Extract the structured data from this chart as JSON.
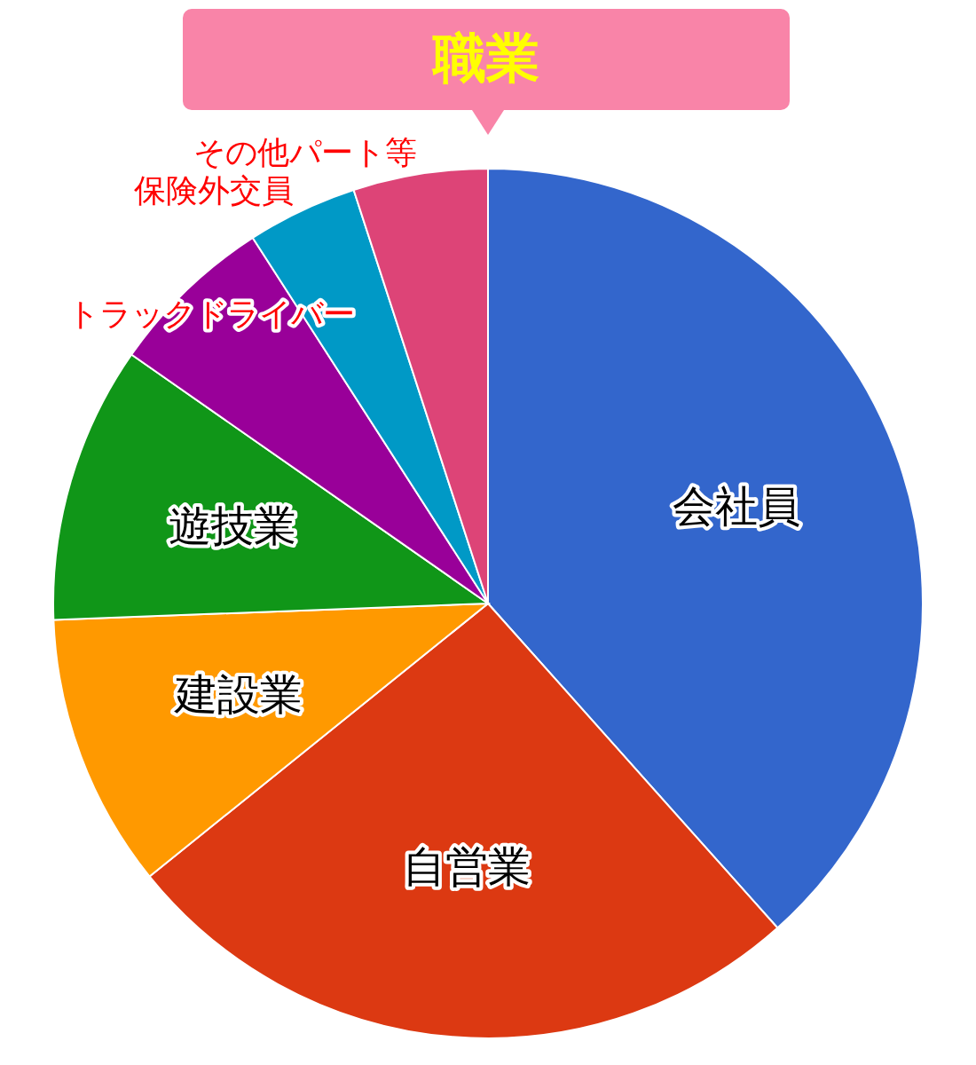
{
  "chart_data": {
    "type": "pie",
    "title": "職業",
    "categories": [
      "会社員",
      "自営業",
      "建設業",
      "遊技業",
      "トラックドライバー",
      "保険外交員",
      "その他パート等"
    ],
    "values": [
      38.4,
      25.8,
      10.2,
      10.3,
      6.2,
      4.1,
      5.0
    ],
    "colors": [
      "#3366cc",
      "#dc3912",
      "#ff9900",
      "#109618",
      "#990099",
      "#0099c6",
      "#dd4477"
    ],
    "legend": false
  }
}
